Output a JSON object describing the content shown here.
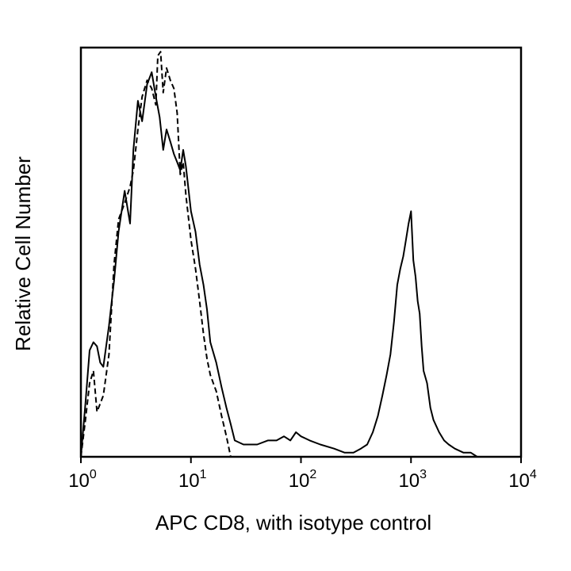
{
  "chart_data": {
    "type": "line",
    "title": "",
    "xlabel": "APC CD8, with isotype control",
    "ylabel": "Relative Cell Number",
    "x_scale": "log",
    "xlim": [
      1,
      10000
    ],
    "ylim": [
      0,
      100
    ],
    "grid": false,
    "x_ticks": [
      {
        "value": 1,
        "base": "10",
        "exp": "0"
      },
      {
        "value": 10,
        "base": "10",
        "exp": "1"
      },
      {
        "value": 100,
        "base": "10",
        "exp": "2"
      },
      {
        "value": 1000,
        "base": "10",
        "exp": "3"
      },
      {
        "value": 10000,
        "base": "10",
        "exp": "4"
      }
    ],
    "series": [
      {
        "style": "solid",
        "color": "#000000",
        "x": [
          1.0,
          1.1,
          1.2,
          1.3,
          1.4,
          1.5,
          1.6,
          1.8,
          2.0,
          2.2,
          2.5,
          2.8,
          3.0,
          3.3,
          3.6,
          4.0,
          4.4,
          4.8,
          5.2,
          5.6,
          6.0,
          6.5,
          7.0,
          7.5,
          8.0,
          8.5,
          9.0,
          10,
          11,
          12,
          13,
          14,
          15,
          17,
          19,
          21,
          23,
          25,
          30,
          40,
          50,
          60,
          70,
          80,
          90,
          100,
          120,
          150,
          200,
          250,
          300,
          350,
          400,
          450,
          500,
          550,
          600,
          650,
          700,
          750,
          800,
          850,
          900,
          950,
          1000,
          1050,
          1100,
          1150,
          1200,
          1250,
          1300,
          1400,
          1500,
          1600,
          1800,
          2000,
          2200,
          2500,
          3000,
          3500,
          4000,
          4500
        ],
        "y": [
          0,
          13,
          26,
          28,
          27,
          23,
          22,
          32,
          43,
          55,
          65,
          57,
          75,
          87,
          82,
          91,
          94,
          88,
          83,
          75,
          80,
          77,
          74,
          72,
          70,
          75,
          71,
          60,
          55,
          47,
          42,
          36,
          28,
          23,
          17,
          12,
          8,
          4,
          3,
          3,
          4,
          4,
          5,
          4,
          6,
          5,
          4,
          3,
          2,
          1,
          1,
          2,
          3,
          6,
          10,
          15,
          20,
          25,
          33,
          42,
          46,
          49,
          53,
          57,
          60,
          48,
          44,
          38,
          35,
          27,
          21,
          18,
          12,
          9,
          6,
          4,
          3,
          2,
          1,
          1,
          0,
          0
        ]
      },
      {
        "style": "dashed",
        "color": "#000000",
        "x": [
          1.0,
          1.1,
          1.2,
          1.3,
          1.4,
          1.5,
          1.6,
          1.8,
          2.0,
          2.2,
          2.5,
          2.8,
          3.0,
          3.3,
          3.6,
          4.0,
          4.4,
          4.8,
          5.0,
          5.3,
          5.6,
          6.0,
          6.5,
          7.0,
          7.5,
          8.0,
          8.5,
          9.0,
          10,
          11,
          12,
          13,
          14,
          15,
          17,
          19,
          21,
          23
        ],
        "y": [
          0,
          9,
          18,
          21,
          11,
          13,
          15,
          25,
          47,
          58,
          62,
          66,
          70,
          80,
          88,
          92,
          90,
          86,
          98,
          99,
          89,
          95,
          92,
          90,
          84,
          69,
          72,
          64,
          53,
          46,
          38,
          30,
          24,
          20,
          16,
          10,
          5,
          0
        ]
      }
    ]
  }
}
